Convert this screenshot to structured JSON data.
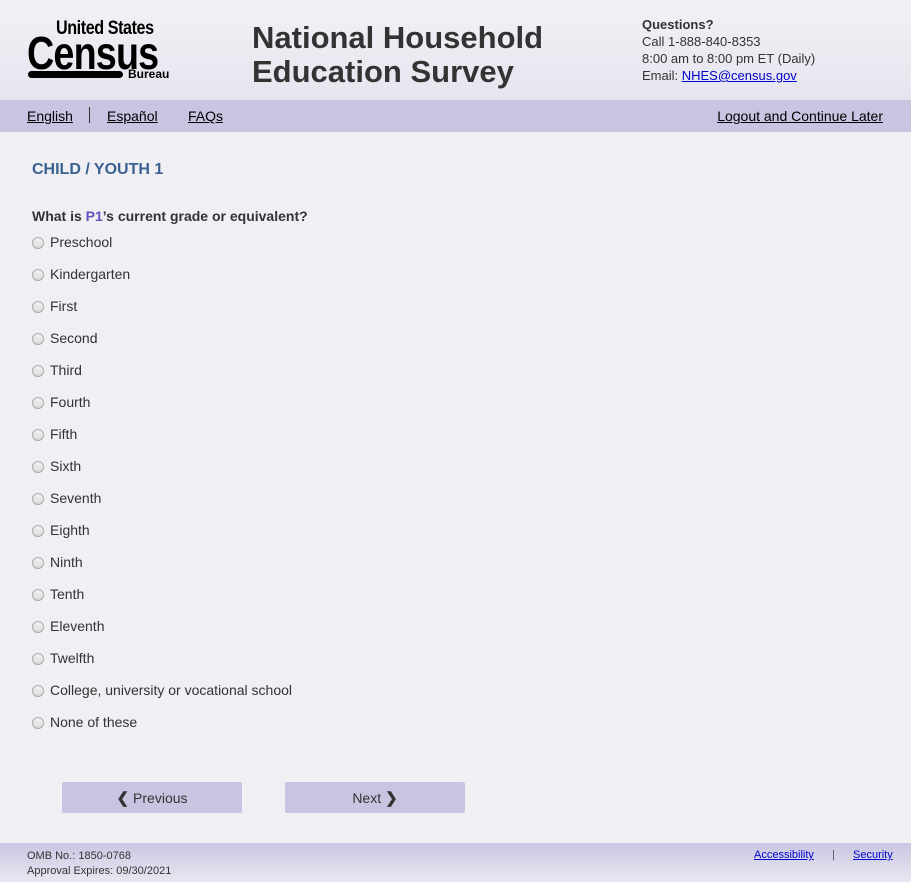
{
  "header": {
    "logo": {
      "line1": "United States",
      "line2": "Census",
      "line3": "Bureau"
    },
    "title_line1": "National Household",
    "title_line2": "Education Survey",
    "contact": {
      "heading": "Questions?",
      "phone": "Call 1-888-840-8353",
      "hours": "8:00 am to 8:00 pm ET (Daily)",
      "email_label": "Email: ",
      "email": "NHES@census.gov"
    }
  },
  "nav": {
    "english": "English",
    "espanol": "Español",
    "faqs": "FAQs",
    "logout": "Logout and Continue Later"
  },
  "main": {
    "section_title": "CHILD / YOUTH 1",
    "question": {
      "pre": "What is ",
      "person": "P1",
      "post": "’s current grade or equivalent?"
    },
    "options": [
      "Preschool",
      "Kindergarten",
      "First",
      "Second",
      "Third",
      "Fourth",
      "Fifth",
      "Sixth",
      "Seventh",
      "Eighth",
      "Ninth",
      "Tenth",
      "Eleventh",
      "Twelfth",
      "College, university or vocational school",
      "None of these"
    ]
  },
  "buttons": {
    "previous": "Previous",
    "next": "Next",
    "previous_icon": "chevron-left-icon",
    "next_icon": "chevron-right-icon"
  },
  "footer": {
    "omb": "OMB No.: 1850-0768",
    "approval": "Approval Expires: 09/30/2021",
    "accessibility": "Accessibility",
    "separator": "|",
    "security": "Security"
  },
  "colors": {
    "nav_bg": "#c7c5e1",
    "section_title": "#3b6190",
    "person_highlight": "#6a4fbf",
    "link": "#0000cc"
  }
}
